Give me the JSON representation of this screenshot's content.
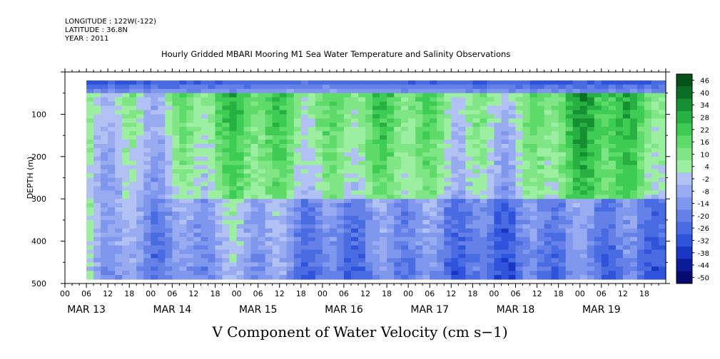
{
  "header": {
    "longitude": "LONGITUDE : 122W(-122)",
    "latitude": "LATITUDE : 36.8N",
    "year": "YEAR : 2011"
  },
  "chart_data": {
    "type": "heatmap",
    "title": "Hourly Gridded MBARI Mooring M1 Sea Water Temperature and Salinity Observations",
    "xlabel": "V Component of Water Velocity (cm s−1)",
    "ylabel": "DEPTH (m)",
    "ylim": [
      500,
      0
    ],
    "y_ticks": [
      100,
      200,
      300,
      400,
      500
    ],
    "x_hour_ticks": [
      "00",
      "06",
      "12",
      "18",
      "00",
      "06",
      "12",
      "18",
      "00",
      "06",
      "12",
      "18",
      "00",
      "06",
      "12",
      "18",
      "00",
      "06",
      "12",
      "18",
      "00",
      "06",
      "12",
      "18",
      "00",
      "06",
      "12",
      "18"
    ],
    "x_day_labels": [
      "MAR 13",
      "MAR 14",
      "MAR 15",
      "MAR 16",
      "MAR 17",
      "MAR 18",
      "MAR 19"
    ],
    "data_extent": {
      "start": "MAR 13 06",
      "end": "MAR 19 24",
      "depth_top": 20,
      "depth_bottom": 490
    },
    "colorbar": {
      "levels": [
        -50,
        -44,
        -38,
        -32,
        -26,
        -20,
        -14,
        -8,
        -2,
        4,
        10,
        16,
        22,
        28,
        34,
        40,
        46
      ],
      "labels": [
        "46",
        "40",
        "34",
        "28",
        "22",
        "16",
        "10",
        "4",
        "-2",
        "-8",
        "-14",
        "-20",
        "-26",
        "-32",
        "-38",
        "-44",
        "-50"
      ],
      "colors": [
        "#070a6e",
        "#0d1d9a",
        "#1a36c5",
        "#3053dc",
        "#4a6ce2",
        "#6581e7",
        "#7f97ec",
        "#98abf0",
        "#b2c1f3",
        "#9cefa0",
        "#7fe585",
        "#5fdb6b",
        "#3fcc54",
        "#28b043",
        "#168f33",
        "#0a6e25",
        "#04511a"
      ]
    },
    "field_profile": [
      {
        "day_hour": 6,
        "v_surface": -30,
        "v_mid": 0,
        "v_deep": 2
      },
      {
        "day_hour": 30,
        "v_surface": -28,
        "v_mid": 8,
        "v_deep": -6
      },
      {
        "day_hour": 54,
        "v_surface": -26,
        "v_mid": 14,
        "v_deep": -4
      },
      {
        "day_hour": 78,
        "v_surface": -25,
        "v_mid": 16,
        "v_deep": -10
      },
      {
        "day_hour": 102,
        "v_surface": -27,
        "v_mid": 6,
        "v_deep": -14
      },
      {
        "day_hour": 126,
        "v_surface": -28,
        "v_mid": 8,
        "v_deep": -12
      },
      {
        "day_hour": 150,
        "v_surface": -30,
        "v_mid": 22,
        "v_deep": -16
      },
      {
        "day_hour": 168,
        "v_surface": -28,
        "v_mid": 18,
        "v_deep": -10
      }
    ]
  }
}
